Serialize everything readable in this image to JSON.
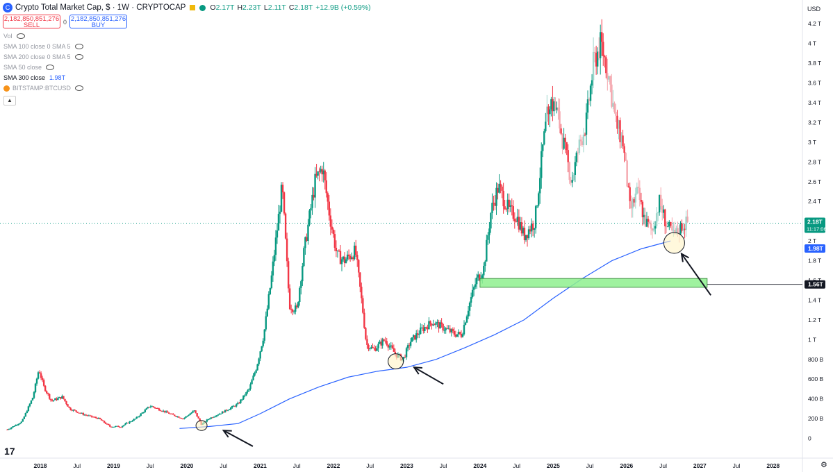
{
  "header": {
    "title": "Crypto Total Market Cap, $ · 1W · CRYPTOCAP",
    "logo_letter": "C",
    "ohlc": {
      "o_label": "O",
      "o": "2.17T",
      "h_label": "H",
      "h": "2.23T",
      "l_label": "L",
      "l": "2.11T",
      "c_label": "C",
      "c": "2.18T",
      "change": "+12.9B (+0.59%)"
    }
  },
  "trade": {
    "sell_price": "2,182,850,851,276",
    "sell_label": "SELL",
    "spread": "0",
    "buy_price": "2,182,850,851,276",
    "buy_label": "BUY"
  },
  "legend": [
    {
      "label": "Vol",
      "value": ""
    },
    {
      "label": "SMA 100 close 0 SMA 5",
      "value": ""
    },
    {
      "label": "SMA 200 close 0 SMA 5",
      "value": ""
    },
    {
      "label": "SMA 50 close",
      "value": ""
    },
    {
      "label": "SMA 300 close",
      "value": "1.98T"
    },
    {
      "label": "BITSTAMP:BTCUSD",
      "value": ""
    }
  ],
  "collapse_icon": "chevron-up-icon",
  "colors": {
    "up": "#089981",
    "down": "#f23645",
    "up_light": "#9fd6cc",
    "sma": "#2962ff",
    "zone": "#8ef08e",
    "price_label": "#089981",
    "sma_label": "#2962ff",
    "level_label": "#131722"
  },
  "chart_data": {
    "type": "candlestick",
    "currency_label": "USD",
    "y_ticks": [
      "0",
      "200 B",
      "400 B",
      "600 B",
      "800 B",
      "1 T",
      "1.2 T",
      "1.4 T",
      "1.6 T",
      "1.8 T",
      "2 T",
      "2.2 T",
      "2.4 T",
      "2.6 T",
      "2.8 T",
      "3 T",
      "3.2 T",
      "3.4 T",
      "3.6 T",
      "3.8 T",
      "4 T",
      "4.2 T"
    ],
    "y_tick_values": [
      0,
      0.2,
      0.4,
      0.6,
      0.8,
      1,
      1.2,
      1.4,
      1.6,
      1.8,
      2,
      2.2,
      2.4,
      2.6,
      2.8,
      3,
      3.2,
      3.4,
      3.6,
      3.8,
      4,
      4.2
    ],
    "x_ticks": [
      {
        "label": "2018",
        "t": 2018.0,
        "bold": true
      },
      {
        "label": "Jul",
        "t": 2018.5
      },
      {
        "label": "2019",
        "t": 2019.0,
        "bold": true
      },
      {
        "label": "Jul",
        "t": 2019.5
      },
      {
        "label": "2020",
        "t": 2020.0,
        "bold": true
      },
      {
        "label": "Jul",
        "t": 2020.5
      },
      {
        "label": "2021",
        "t": 2021.0,
        "bold": true
      },
      {
        "label": "Jul",
        "t": 2021.5
      },
      {
        "label": "2022",
        "t": 2022.0,
        "bold": true
      },
      {
        "label": "Jul",
        "t": 2022.5
      },
      {
        "label": "2023",
        "t": 2023.0,
        "bold": true
      },
      {
        "label": "Jul",
        "t": 2023.5
      },
      {
        "label": "2024",
        "t": 2024.0,
        "bold": true
      },
      {
        "label": "Jul",
        "t": 2024.5
      },
      {
        "label": "2025",
        "t": 2025.0,
        "bold": true
      },
      {
        "label": "Jul",
        "t": 2025.5
      },
      {
        "label": "2026",
        "t": 2026.0,
        "bold": true
      },
      {
        "label": "Jul",
        "t": 2026.5
      },
      {
        "label": "2027",
        "t": 2027.0,
        "bold": true
      },
      {
        "label": "Jul",
        "t": 2027.5
      },
      {
        "label": "2028",
        "t": 2028.0,
        "bold": true
      }
    ],
    "price_path": [
      [
        2017.55,
        0.09
      ],
      [
        2017.75,
        0.17
      ],
      [
        2017.9,
        0.42
      ],
      [
        2017.98,
        0.7
      ],
      [
        2018.05,
        0.52
      ],
      [
        2018.15,
        0.38
      ],
      [
        2018.3,
        0.42
      ],
      [
        2018.4,
        0.3
      ],
      [
        2018.6,
        0.24
      ],
      [
        2018.8,
        0.2
      ],
      [
        2018.95,
        0.12
      ],
      [
        2019.1,
        0.12
      ],
      [
        2019.3,
        0.2
      ],
      [
        2019.5,
        0.33
      ],
      [
        2019.6,
        0.3
      ],
      [
        2019.8,
        0.24
      ],
      [
        2019.95,
        0.2
      ],
      [
        2020.1,
        0.28
      ],
      [
        2020.2,
        0.14
      ],
      [
        2020.3,
        0.2
      ],
      [
        2020.5,
        0.27
      ],
      [
        2020.7,
        0.35
      ],
      [
        2020.85,
        0.5
      ],
      [
        2020.95,
        0.72
      ],
      [
        2021.05,
        1.05
      ],
      [
        2021.15,
        1.6
      ],
      [
        2021.3,
        2.55
      ],
      [
        2021.4,
        1.35
      ],
      [
        2021.5,
        1.3
      ],
      [
        2021.6,
        1.9
      ],
      [
        2021.75,
        2.6
      ],
      [
        2021.85,
        2.75
      ],
      [
        2021.95,
        2.25
      ],
      [
        2022.05,
        1.85
      ],
      [
        2022.15,
        1.8
      ],
      [
        2022.3,
        1.9
      ],
      [
        2022.4,
        1.3
      ],
      [
        2022.45,
        0.95
      ],
      [
        2022.55,
        0.9
      ],
      [
        2022.7,
        1.0
      ],
      [
        2022.85,
        0.85
      ],
      [
        2022.95,
        0.8
      ],
      [
        2023.05,
        0.98
      ],
      [
        2023.2,
        1.1
      ],
      [
        2023.35,
        1.18
      ],
      [
        2023.5,
        1.12
      ],
      [
        2023.65,
        1.06
      ],
      [
        2023.75,
        1.05
      ],
      [
        2023.85,
        1.35
      ],
      [
        2023.95,
        1.6
      ],
      [
        2024.05,
        1.72
      ],
      [
        2024.15,
        2.3
      ],
      [
        2024.25,
        2.55
      ],
      [
        2024.4,
        2.3
      ],
      [
        2024.5,
        2.25
      ],
      [
        2024.6,
        2.05
      ],
      [
        2024.75,
        2.2
      ],
      [
        2024.85,
        2.9
      ],
      [
        2024.95,
        3.45
      ],
      [
        2025.05,
        3.3
      ],
      [
        2025.15,
        2.95
      ],
      [
        2025.25,
        2.6
      ],
      [
        2025.35,
        2.95
      ],
      [
        2025.45,
        3.2
      ],
      [
        2025.55,
        3.8
      ],
      [
        2025.65,
        4.0
      ],
      [
        2025.75,
        3.7
      ],
      [
        2025.85,
        3.2
      ],
      [
        2025.95,
        3.0
      ],
      [
        2026.05,
        2.3
      ],
      [
        2026.15,
        2.5
      ],
      [
        2026.25,
        2.2
      ],
      [
        2026.35,
        2.1
      ],
      [
        2026.45,
        2.4
      ],
      [
        2026.55,
        2.15
      ],
      [
        2026.65,
        2.05
      ],
      [
        2026.75,
        2.15
      ],
      [
        2026.85,
        2.2
      ]
    ],
    "sma_path": [
      [
        2019.9,
        0.1
      ],
      [
        2020.3,
        0.12
      ],
      [
        2020.7,
        0.15
      ],
      [
        2021.0,
        0.25
      ],
      [
        2021.4,
        0.4
      ],
      [
        2021.8,
        0.52
      ],
      [
        2022.2,
        0.62
      ],
      [
        2022.6,
        0.68
      ],
      [
        2023.0,
        0.72
      ],
      [
        2023.4,
        0.8
      ],
      [
        2023.8,
        0.92
      ],
      [
        2024.2,
        1.05
      ],
      [
        2024.6,
        1.2
      ],
      [
        2025.0,
        1.42
      ],
      [
        2025.4,
        1.62
      ],
      [
        2025.8,
        1.8
      ],
      [
        2026.2,
        1.92
      ],
      [
        2026.6,
        2.0
      ]
    ],
    "zone": {
      "t_start": 2024.0,
      "t_end": 2027.1,
      "y_low": 1.53,
      "y_high": 1.62
    },
    "level_line": {
      "t_start": 2027.1,
      "t_end": 2028.3,
      "y": 1.56
    },
    "circles": [
      {
        "t": 2020.2,
        "y": 0.13
      },
      {
        "t": 2022.85,
        "y": 0.78
      },
      {
        "t": 2026.65,
        "y": 1.98
      }
    ],
    "arrows": [
      {
        "t1": 2020.9,
        "y1": -0.08,
        "t2": 2020.5,
        "y2": 0.08
      },
      {
        "t1": 2023.5,
        "y1": 0.55,
        "t2": 2023.1,
        "y2": 0.72
      },
      {
        "t1": 2027.15,
        "y1": 1.45,
        "t2": 2026.75,
        "y2": 1.87
      }
    ],
    "labels": {
      "price": "2.18T",
      "countdown": "11:17:06",
      "sma": "1.98T",
      "level": "1.56T"
    },
    "current_y": 2.18,
    "ylim": [
      -0.2,
      4.3
    ],
    "xlim": [
      2017.45,
      2028.4
    ]
  }
}
